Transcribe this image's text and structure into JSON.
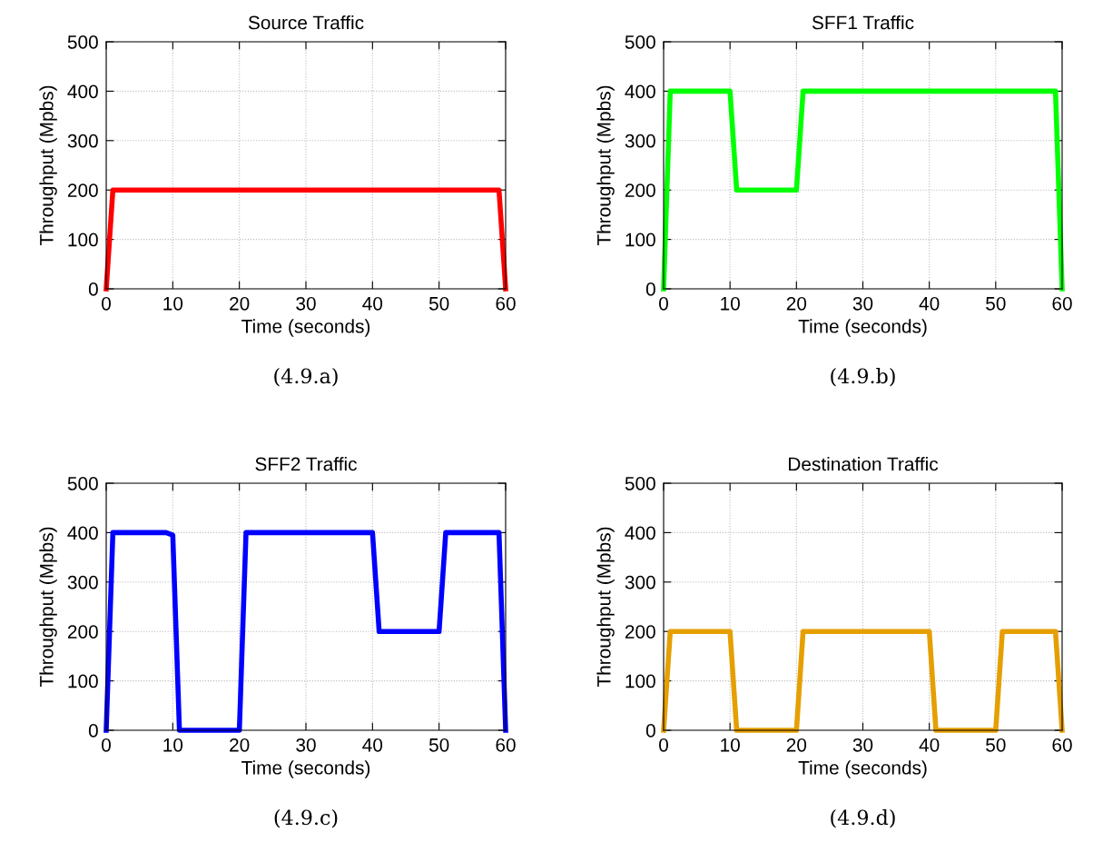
{
  "chart_data": [
    {
      "type": "line",
      "title": "Source Traffic",
      "xlabel": "Time (seconds)",
      "ylabel": "Throughput (Mpbs)",
      "annotations": [
        "(4.9.a)"
      ],
      "x": [
        0,
        1,
        59,
        60
      ],
      "series": [
        {
          "color": "#ff0000",
          "values": [
            0,
            200,
            200,
            0
          ]
        }
      ],
      "xlim": [
        0,
        60
      ],
      "ylim": [
        0,
        500
      ],
      "xticks": [
        0,
        10,
        20,
        30,
        40,
        50,
        60
      ],
      "yticks": [
        0,
        100,
        200,
        300,
        400,
        500
      ],
      "grid": true,
      "line_style": "solid",
      "marker": "none"
    },
    {
      "type": "line",
      "title": "SFF1 Traffic",
      "xlabel": "Time (seconds)",
      "ylabel": "Throughput (Mpbs)",
      "annotations": [
        "(4.9.b)"
      ],
      "x": [
        0,
        1,
        10,
        11,
        20,
        21,
        59,
        60
      ],
      "series": [
        {
          "color": "#00ff00",
          "values": [
            0,
            400,
            400,
            200,
            200,
            400,
            400,
            0
          ]
        }
      ],
      "xlim": [
        0,
        60
      ],
      "ylim": [
        0,
        500
      ],
      "xticks": [
        0,
        10,
        20,
        30,
        40,
        50,
        60
      ],
      "yticks": [
        0,
        100,
        200,
        300,
        400,
        500
      ],
      "grid": true,
      "line_style": "solid",
      "marker": "none"
    },
    {
      "type": "line",
      "title": "SFF2 Traffic",
      "xlabel": "Time (seconds)",
      "ylabel": "Throughput (Mpbs)",
      "annotations": [
        "(4.9.c)"
      ],
      "x": [
        0,
        1,
        9,
        10,
        11,
        20,
        21,
        40,
        41,
        50,
        51,
        59,
        60
      ],
      "series": [
        {
          "color": "#0000ff",
          "values": [
            0,
            400,
            400,
            395,
            0,
            0,
            400,
            400,
            200,
            200,
            400,
            400,
            0
          ]
        }
      ],
      "xlim": [
        0,
        60
      ],
      "ylim": [
        0,
        500
      ],
      "xticks": [
        0,
        10,
        20,
        30,
        40,
        50,
        60
      ],
      "yticks": [
        0,
        100,
        200,
        300,
        400,
        500
      ],
      "grid": true,
      "line_style": "solid",
      "marker": "none"
    },
    {
      "type": "line",
      "title": "Destination Traffic",
      "xlabel": "Time (seconds)",
      "ylabel": "Throughput (Mpbs)",
      "annotations": [
        "(4.9.d)"
      ],
      "x": [
        0,
        1,
        10,
        11,
        20,
        21,
        40,
        41,
        50,
        51,
        59,
        60
      ],
      "series": [
        {
          "color": "#e69f00",
          "values": [
            0,
            200,
            200,
            0,
            0,
            200,
            200,
            0,
            0,
            200,
            200,
            0
          ]
        }
      ],
      "xlim": [
        0,
        60
      ],
      "ylim": [
        0,
        500
      ],
      "xticks": [
        0,
        10,
        20,
        30,
        40,
        50,
        60
      ],
      "yticks": [
        0,
        100,
        200,
        300,
        400,
        500
      ],
      "grid": true,
      "line_style": "solid",
      "marker": "none"
    }
  ]
}
